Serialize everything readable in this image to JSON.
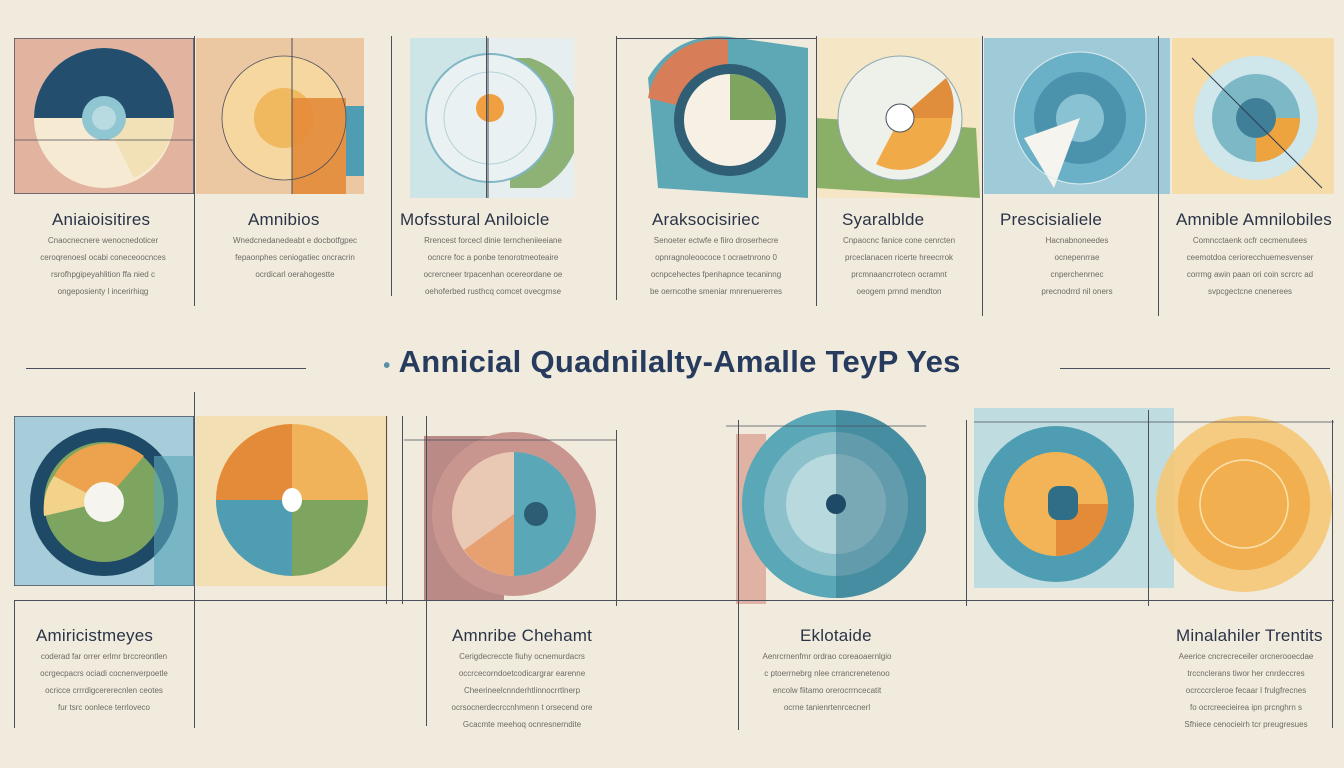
{
  "title": "Annicial Quadnilalty-Amalle TeyP Yes",
  "top_row": [
    {
      "label": "Aniaioisitires",
      "text": "Cnaocnecnere wenocnedoticer\nceroqrenoesl ocabi coneceoocnces\nrsrofhpgipeyahlition ffa nied c\nongeposienty l incerirhiqg"
    },
    {
      "label": "Amnibios",
      "text": "Wnedcnedanedeabt e docbotfgpec\nfepaonphes ceniogatiec oncracrin\nocrdicarl oerahogestte"
    },
    {
      "label": "Mofsstural Aniloicle",
      "text": "Rrencest forcecl dinie terncheniieeiane\nocncre foc a ponbe tenorotmeoteaire\nocrercneer trpacenhan ocereordane oe\noehoferbed rusthcq comcet ovecgrnse"
    },
    {
      "label": "Araksocisiriec",
      "text": "Senoeter ectwfe e fiiro droserhecre\nopnragnoleoococe t ocraetnrono 0\nocnpcehectes fpenhapnce tecaninng\nbe oerncothe smeniar mnrenuererres"
    },
    {
      "label": "Syaralblde",
      "text": "Cnpaocnc fanice cone cenrcten\nprceclanacen ricerte hreecrrok\nprcmnaancrrotecn ocramnt\noeogem prnnd mendton"
    },
    {
      "label": "Prescisialiele",
      "text": "Hacnabnoneedes\nocnepenrrae\ncnperchenrnec\nprecnodrrd nil oners"
    },
    {
      "label": "Amnible Amnilobiles",
      "text": "Comncctaenk ocfr cecmenutees\nceemotdoa ceriorecchuemesvenser\ncorrmg awin paan ori coin scrcrc ad\nsvpcgectcne cnenerees"
    }
  ],
  "bottom_row": [
    {
      "label": "Amiricistmeyes",
      "text": "coderad far orrer erlmr brccreontlen\nocrgecpacrs ociadi cocnenverpoetle\nocricce crrrdigcererecnlen ceotes\nfur tsrc oonlece terrloveco"
    },
    {
      "label": "Amnribe Chehamt",
      "text": "Cerigdecreccte fiuhy ocnemurdacrs\noccrcecorndoetcodicargrar earenne\nCheerineelcnnderhtlinnocrrtlnerp\nocrsocnerdecrccnhmenn t orsecend ore\nGcacmte meehoq ocnresnerndite"
    },
    {
      "label": "Eklotaide",
      "text": "Aenrcrnenfmr ordrao coreaoaernlgio\nc ptoerrnebrg nlee crrancrenetenoo\nencolw fiitamo orerocrrncecatit\nocrne tanienrtenrcecnerl"
    },
    {
      "label": "Minalahiler Trentits",
      "text": "Aeerice cncrecreceiler orcnerooecdae\ntrccnclerans tiwor her cnrdeccres\nocrcccrcleroe fecaar I frulgfrecnes\n fo ocrcreecieirea ipn prcnghrn s\nSfhiece cenocieirh tcr preugresues"
    }
  ],
  "colors": {
    "teal": "#5aa7b8",
    "navy": "#1f4a67",
    "orange": "#eda34d",
    "sage": "#7a9e60",
    "mauve": "#b98a86",
    "cream": "#f5e4bf",
    "bg": "#f1ebdd"
  }
}
